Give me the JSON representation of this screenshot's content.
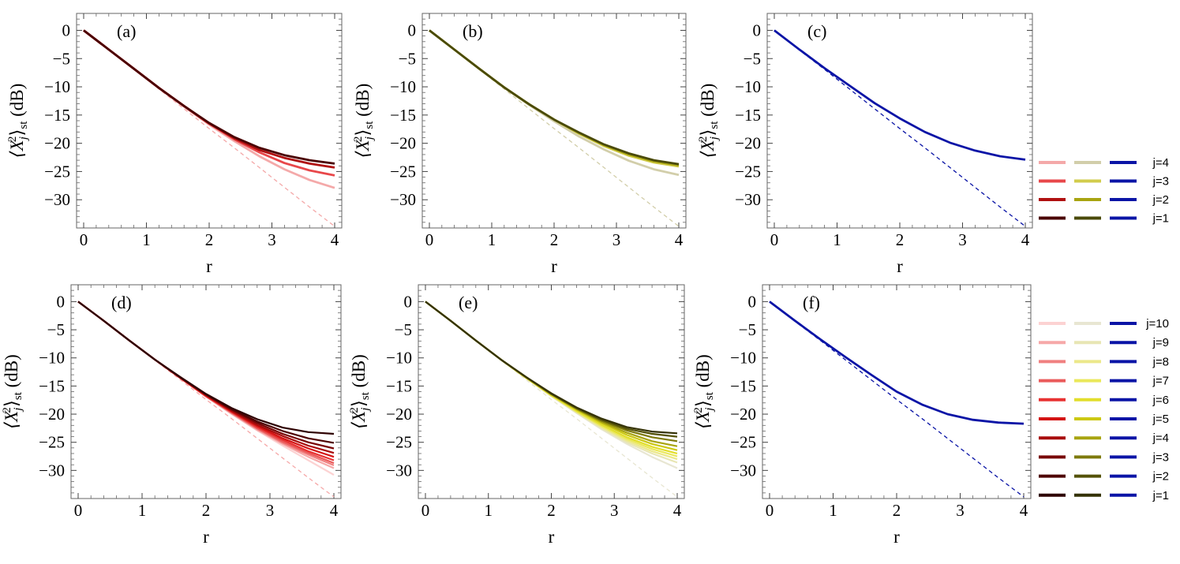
{
  "figure": {
    "ylabel": "⟨X_j²⟩_st (dB)",
    "ylabel_main": "⟨X",
    "ylabel_sup": "2",
    "ylabel_sub": "j",
    "ylabel_close": "⟩",
    "ylabel_sub2": "st",
    "ylabel_unit": " (dB)",
    "xlabel": "r"
  },
  "legend_top": {
    "labels": [
      "j=4",
      "j=3",
      "j=2",
      "j=1"
    ],
    "red": [
      "#f4a9a9",
      "#e8474a",
      "#b01010",
      "#4a0000"
    ],
    "yellow": [
      "#d2ceaa",
      "#d2cc4c",
      "#a8a410",
      "#4a4a0a"
    ],
    "blue": [
      "#0a14a6",
      "#0a14a6",
      "#0a14a6",
      "#0a14a6"
    ]
  },
  "legend_bottom": {
    "labels": [
      "j=10",
      "j=9",
      "j=8",
      "j=7",
      "j=6",
      "j=5",
      "j=4",
      "j=3",
      "j=2",
      "j=1"
    ],
    "red": [
      "#fcd2d2",
      "#f6a8a8",
      "#f08080",
      "#ea5a5a",
      "#e83232",
      "#d41414",
      "#a80a0a",
      "#780505",
      "#4e0303",
      "#2e0202"
    ],
    "yellow": [
      "#e8e6d2",
      "#e8e6b4",
      "#ece88a",
      "#eae85a",
      "#e2de2c",
      "#ccc812",
      "#a8a410",
      "#7e7a0c",
      "#545208",
      "#343206"
    ],
    "blue": [
      "#0a14a6",
      "#0a14a6",
      "#0a14a6",
      "#0a14a6",
      "#0a14a6",
      "#0a14a6",
      "#0a14a6",
      "#0a14a6",
      "#0a14a6",
      "#0a14a6"
    ]
  },
  "chart_data": [
    {
      "panel": "(a)",
      "type": "line",
      "xlabel": "r",
      "ylabel": "⟨X_j²⟩_st (dB)",
      "xlim": [
        0,
        4
      ],
      "ylim": [
        -35,
        3
      ],
      "xticks": [
        "0",
        "1",
        "2",
        "3",
        "4"
      ],
      "yticks": [
        "0",
        "−5",
        "−10",
        "−15",
        "−20",
        "−25",
        "−30"
      ],
      "x": [
        0,
        0.4,
        0.8,
        1.2,
        1.6,
        2.0,
        2.4,
        2.8,
        3.2,
        3.6,
        4.0
      ],
      "reference": {
        "color": "#f4a9a9",
        "values": [
          0,
          -3.5,
          -6.9,
          -10.4,
          -13.9,
          -17.4,
          -20.8,
          -24.3,
          -27.8,
          -31.3,
          -34.7
        ]
      },
      "series": [
        {
          "legend": "j=4",
          "color": "#f4a9a9",
          "values": [
            0,
            -3.4,
            -6.8,
            -10.2,
            -13.5,
            -16.7,
            -19.6,
            -22.3,
            -24.6,
            -26.5,
            -27.9
          ]
        },
        {
          "legend": "j=3",
          "color": "#e8474a",
          "values": [
            0,
            -3.4,
            -6.8,
            -10.2,
            -13.4,
            -16.5,
            -19.3,
            -21.6,
            -23.5,
            -24.8,
            -25.7
          ]
        },
        {
          "legend": "j=2",
          "color": "#b01010",
          "values": [
            0,
            -3.4,
            -6.8,
            -10.2,
            -13.4,
            -16.5,
            -19.1,
            -21.2,
            -22.6,
            -23.6,
            -24.3
          ]
        },
        {
          "legend": "j=1",
          "color": "#4a0000",
          "values": [
            0,
            -3.4,
            -6.8,
            -10.2,
            -13.4,
            -16.4,
            -18.9,
            -20.8,
            -22.1,
            -23.0,
            -23.6
          ]
        }
      ]
    },
    {
      "panel": "(b)",
      "type": "line",
      "xlabel": "r",
      "ylabel": "⟨X_j²⟩_st (dB)",
      "xlim": [
        0,
        4
      ],
      "ylim": [
        -35,
        3
      ],
      "xticks": [
        "0",
        "1",
        "2",
        "3",
        "4"
      ],
      "yticks": [
        "0",
        "−5",
        "−10",
        "−15",
        "−20",
        "−25",
        "−30"
      ],
      "x": [
        0,
        0.4,
        0.8,
        1.2,
        1.6,
        2.0,
        2.4,
        2.8,
        3.2,
        3.6,
        4.0
      ],
      "reference": {
        "color": "#d2ceaa",
        "values": [
          0,
          -3.5,
          -6.9,
          -10.4,
          -13.9,
          -17.4,
          -20.8,
          -24.3,
          -27.8,
          -31.3,
          -34.7
        ]
      },
      "series": [
        {
          "legend": "j=4",
          "color": "#d2ceaa",
          "values": [
            0,
            -3.4,
            -6.8,
            -10.1,
            -13.2,
            -16.1,
            -18.8,
            -21.1,
            -23.1,
            -24.6,
            -25.6
          ]
        },
        {
          "legend": "j=3",
          "color": "#d2cc4c",
          "values": [
            0,
            -3.4,
            -6.8,
            -10.1,
            -13.1,
            -15.8,
            -18.3,
            -20.5,
            -22.2,
            -23.4,
            -24.1
          ]
        },
        {
          "legend": "j=2",
          "color": "#a8a410",
          "values": [
            0,
            -3.4,
            -6.8,
            -10.1,
            -13.1,
            -15.8,
            -18.2,
            -20.3,
            -22.0,
            -23.2,
            -23.9
          ]
        },
        {
          "legend": "j=1",
          "color": "#4a4a0a",
          "values": [
            0,
            -3.4,
            -6.8,
            -10.1,
            -13.1,
            -15.8,
            -18.1,
            -20.2,
            -21.8,
            -23.0,
            -23.7
          ]
        }
      ]
    },
    {
      "panel": "(c)",
      "type": "line",
      "xlabel": "r",
      "ylabel": "⟨X_j²⟩_st (dB)",
      "xlim": [
        0,
        4
      ],
      "ylim": [
        -35,
        3
      ],
      "xticks": [
        "0",
        "1",
        "2",
        "3",
        "4"
      ],
      "yticks": [
        "0",
        "−5",
        "−10",
        "−15",
        "−20",
        "−25",
        "−30"
      ],
      "x": [
        0,
        0.4,
        0.8,
        1.2,
        1.6,
        2.0,
        2.4,
        2.8,
        3.2,
        3.6,
        4.0
      ],
      "reference": {
        "color": "#0a14a6",
        "values": [
          0,
          -3.5,
          -6.9,
          -10.4,
          -13.9,
          -17.4,
          -20.8,
          -24.3,
          -27.8,
          -31.3,
          -34.7
        ]
      },
      "series": [
        {
          "legend": "j=1",
          "color": "#0a14a6",
          "values": [
            0,
            -3.4,
            -6.7,
            -9.8,
            -12.9,
            -15.6,
            -18.0,
            -19.9,
            -21.3,
            -22.3,
            -22.9
          ]
        }
      ]
    },
    {
      "panel": "(d)",
      "type": "line",
      "xlabel": "r",
      "ylabel": "⟨X_j²⟩_st (dB)",
      "xlim": [
        0,
        4
      ],
      "ylim": [
        -35,
        3
      ],
      "xticks": [
        "0",
        "1",
        "2",
        "3",
        "4"
      ],
      "yticks": [
        "0",
        "−5",
        "−10",
        "−15",
        "−20",
        "−25",
        "−30"
      ],
      "x": [
        0,
        0.4,
        0.8,
        1.2,
        1.6,
        2.0,
        2.4,
        2.8,
        3.2,
        3.6,
        4.0
      ],
      "reference": {
        "color": "#f6a8a8",
        "values": [
          0,
          -3.5,
          -6.9,
          -10.4,
          -13.9,
          -17.4,
          -20.8,
          -24.3,
          -27.8,
          -31.3,
          -34.7
        ]
      },
      "series": [
        {
          "legend": "j=10",
          "color": "#fcd2d2",
          "values": [
            0,
            -3.4,
            -6.9,
            -10.3,
            -13.6,
            -16.9,
            -20.0,
            -22.9,
            -25.6,
            -28.2,
            -30.8
          ]
        },
        {
          "legend": "j=9",
          "color": "#f6a8a8",
          "values": [
            0,
            -3.4,
            -6.9,
            -10.3,
            -13.6,
            -16.9,
            -19.9,
            -22.8,
            -25.3,
            -27.6,
            -29.6
          ]
        },
        {
          "legend": "j=8",
          "color": "#f08080",
          "values": [
            0,
            -3.4,
            -6.9,
            -10.3,
            -13.6,
            -16.8,
            -19.8,
            -22.6,
            -25.1,
            -27.2,
            -29.1
          ]
        },
        {
          "legend": "j=7",
          "color": "#ea5a5a",
          "values": [
            0,
            -3.4,
            -6.9,
            -10.3,
            -13.6,
            -16.8,
            -19.7,
            -22.5,
            -24.9,
            -26.9,
            -28.7
          ]
        },
        {
          "legend": "j=6",
          "color": "#e83232",
          "values": [
            0,
            -3.4,
            -6.9,
            -10.3,
            -13.6,
            -16.8,
            -19.6,
            -22.3,
            -24.6,
            -26.6,
            -28.2
          ]
        },
        {
          "legend": "j=5",
          "color": "#d41414",
          "values": [
            0,
            -3.4,
            -6.9,
            -10.3,
            -13.5,
            -16.7,
            -19.5,
            -22.1,
            -24.3,
            -26.1,
            -27.6
          ]
        },
        {
          "legend": "j=4",
          "color": "#a80a0a",
          "values": [
            0,
            -3.4,
            -6.9,
            -10.3,
            -13.5,
            -16.6,
            -19.4,
            -21.9,
            -23.9,
            -25.6,
            -26.9
          ]
        },
        {
          "legend": "j=3",
          "color": "#780505",
          "values": [
            0,
            -3.4,
            -6.9,
            -10.3,
            -13.5,
            -16.5,
            -19.2,
            -21.6,
            -23.5,
            -25.0,
            -26.1
          ]
        },
        {
          "legend": "j=2",
          "color": "#4e0303",
          "values": [
            0,
            -3.4,
            -6.9,
            -10.3,
            -13.5,
            -16.5,
            -19.1,
            -21.3,
            -23.0,
            -24.3,
            -25.1
          ]
        },
        {
          "legend": "j=1",
          "color": "#2e0202",
          "values": [
            0,
            -3.4,
            -6.9,
            -10.3,
            -13.4,
            -16.4,
            -18.9,
            -20.9,
            -22.4,
            -23.2,
            -23.5
          ]
        }
      ]
    },
    {
      "panel": "(e)",
      "type": "line",
      "xlabel": "r",
      "ylabel": "⟨X_j²⟩_st (dB)",
      "xlim": [
        0,
        4
      ],
      "ylim": [
        -35,
        3
      ],
      "xticks": [
        "0",
        "1",
        "2",
        "3",
        "4"
      ],
      "yticks": [
        "0",
        "−5",
        "−10",
        "−15",
        "−20",
        "−25",
        "−30"
      ],
      "x": [
        0,
        0.4,
        0.8,
        1.2,
        1.6,
        2.0,
        2.4,
        2.8,
        3.2,
        3.6,
        4.0
      ],
      "reference": {
        "color": "#e8e6d2",
        "values": [
          0,
          -3.5,
          -6.9,
          -10.4,
          -13.9,
          -17.4,
          -20.8,
          -24.3,
          -27.8,
          -31.3,
          -34.7
        ]
      },
      "series": [
        {
          "legend": "j=10",
          "color": "#e8e6d2",
          "values": [
            0,
            -3.4,
            -6.9,
            -10.3,
            -13.6,
            -16.8,
            -19.8,
            -22.7,
            -25.3,
            -27.6,
            -29.6
          ]
        },
        {
          "legend": "j=9",
          "color": "#e8e6b4",
          "values": [
            0,
            -3.4,
            -6.9,
            -10.3,
            -13.6,
            -16.8,
            -19.7,
            -22.5,
            -25.0,
            -27.0,
            -28.6
          ]
        },
        {
          "legend": "j=8",
          "color": "#ece88a",
          "values": [
            0,
            -3.4,
            -6.9,
            -10.3,
            -13.6,
            -16.7,
            -19.6,
            -22.3,
            -24.7,
            -26.6,
            -28.0
          ]
        },
        {
          "legend": "j=7",
          "color": "#eae85a",
          "values": [
            0,
            -3.4,
            -6.9,
            -10.3,
            -13.5,
            -16.7,
            -19.5,
            -22.1,
            -24.4,
            -26.2,
            -27.5
          ]
        },
        {
          "legend": "j=6",
          "color": "#e2de2c",
          "values": [
            0,
            -3.4,
            -6.9,
            -10.3,
            -13.5,
            -16.6,
            -19.4,
            -21.9,
            -24.1,
            -25.8,
            -27.0
          ]
        },
        {
          "legend": "j=5",
          "color": "#ccc812",
          "values": [
            0,
            -3.4,
            -6.9,
            -10.3,
            -13.5,
            -16.5,
            -19.2,
            -21.6,
            -23.7,
            -25.3,
            -26.4
          ]
        },
        {
          "legend": "j=4",
          "color": "#a8a410",
          "values": [
            0,
            -3.4,
            -6.9,
            -10.3,
            -13.5,
            -16.5,
            -19.1,
            -21.4,
            -23.3,
            -24.8,
            -25.7
          ]
        },
        {
          "legend": "j=3",
          "color": "#7e7a0c",
          "values": [
            0,
            -3.4,
            -6.9,
            -10.3,
            -13.4,
            -16.4,
            -19.0,
            -21.2,
            -22.9,
            -24.1,
            -24.8
          ]
        },
        {
          "legend": "j=2",
          "color": "#545208",
          "values": [
            0,
            -3.4,
            -6.9,
            -10.3,
            -13.4,
            -16.4,
            -18.9,
            -21.0,
            -22.6,
            -23.5,
            -24.0
          ]
        },
        {
          "legend": "j=1",
          "color": "#343206",
          "values": [
            0,
            -3.4,
            -6.9,
            -10.3,
            -13.4,
            -16.3,
            -18.8,
            -20.8,
            -22.3,
            -23.1,
            -23.4
          ]
        }
      ]
    },
    {
      "panel": "(f)",
      "type": "line",
      "xlabel": "r",
      "ylabel": "⟨X_j²⟩_st (dB)",
      "xlim": [
        0,
        4
      ],
      "ylim": [
        -35,
        3
      ],
      "xticks": [
        "0",
        "1",
        "2",
        "3",
        "4"
      ],
      "yticks": [
        "0",
        "−5",
        "−10",
        "−15",
        "−20",
        "−25",
        "−30"
      ],
      "x": [
        0,
        0.4,
        0.8,
        1.2,
        1.6,
        2.0,
        2.4,
        2.8,
        3.2,
        3.6,
        4.0
      ],
      "reference": {
        "color": "#0a14a6",
        "values": [
          0,
          -3.5,
          -6.9,
          -10.4,
          -13.9,
          -17.4,
          -20.8,
          -24.3,
          -27.8,
          -31.3,
          -34.7
        ]
      },
      "series": [
        {
          "legend": "j=1",
          "color": "#0a14a6",
          "values": [
            0,
            -3.4,
            -6.7,
            -9.9,
            -13.0,
            -16.0,
            -18.3,
            -20.0,
            -21.0,
            -21.5,
            -21.7
          ]
        }
      ]
    }
  ]
}
